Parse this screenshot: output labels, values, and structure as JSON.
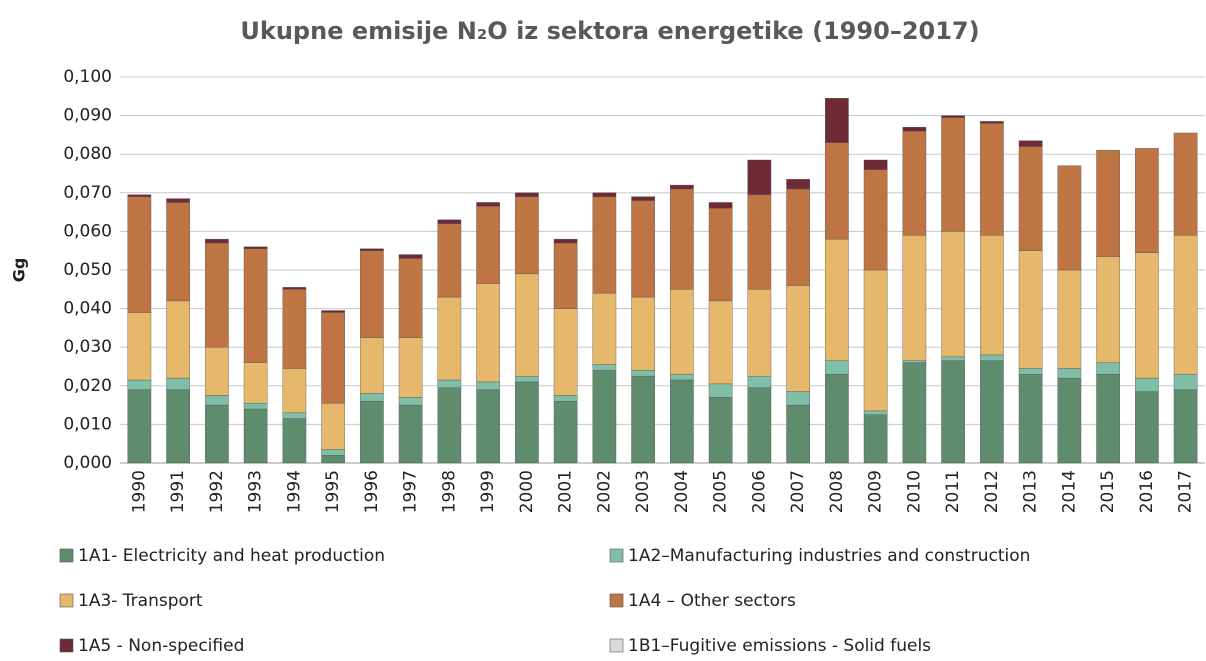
{
  "chart_data": {
    "type": "stacked_bar",
    "title": "Ukupne emisije N₂O iz sektora energetike (1990–2017)",
    "y_label": "Gg",
    "categories": [
      "1990",
      "1991",
      "1992",
      "1993",
      "1994",
      "1995",
      "1996",
      "1997",
      "1998",
      "1999",
      "2000",
      "2001",
      "2002",
      "2003",
      "2004",
      "2005",
      "2006",
      "2007",
      "2008",
      "2009",
      "2010",
      "2011",
      "2012",
      "2013",
      "2014",
      "2015",
      "2016",
      "2017"
    ],
    "series": [
      {
        "name": "1A1- Electricity and heat production",
        "color": "#5e8c6c",
        "values": [
          0.019,
          0.019,
          0.015,
          0.014,
          0.0115,
          0.002,
          0.016,
          0.015,
          0.0195,
          0.019,
          0.021,
          0.016,
          0.024,
          0.0225,
          0.0215,
          0.017,
          0.0195,
          0.015,
          0.023,
          0.0125,
          0.026,
          0.0265,
          0.0265,
          0.023,
          0.022,
          0.023,
          0.0185,
          0.019
        ]
      },
      {
        "name": "1A2–Manufacturing industries and construction",
        "color": "#7fbfa8",
        "values": [
          0.0025,
          0.003,
          0.0025,
          0.0015,
          0.0015,
          0.0015,
          0.002,
          0.002,
          0.002,
          0.002,
          0.0015,
          0.0015,
          0.0015,
          0.0015,
          0.0015,
          0.0035,
          0.003,
          0.0035,
          0.0035,
          0.001,
          0.0005,
          0.001,
          0.0015,
          0.0015,
          0.0025,
          0.003,
          0.0035,
          0.004
        ]
      },
      {
        "name": "1A3- Transport",
        "color": "#e6b86c",
        "values": [
          0.0175,
          0.02,
          0.0125,
          0.0105,
          0.0115,
          0.012,
          0.0145,
          0.0155,
          0.0215,
          0.0255,
          0.0265,
          0.0225,
          0.0185,
          0.019,
          0.022,
          0.0215,
          0.0225,
          0.0275,
          0.0315,
          0.0365,
          0.0325,
          0.0325,
          0.031,
          0.0305,
          0.0255,
          0.0275,
          0.0325,
          0.036
        ]
      },
      {
        "name": "1A4 – Other sectors",
        "color": "#bf7444",
        "values": [
          0.03,
          0.0255,
          0.027,
          0.0295,
          0.0205,
          0.0235,
          0.0225,
          0.0205,
          0.019,
          0.02,
          0.02,
          0.017,
          0.025,
          0.025,
          0.026,
          0.024,
          0.0245,
          0.025,
          0.025,
          0.026,
          0.027,
          0.0295,
          0.029,
          0.027,
          0.027,
          0.0275,
          0.027,
          0.0265
        ]
      },
      {
        "name": "1A5 - Non-specified",
        "color": "#6e2a36",
        "values": [
          0.0005,
          0.001,
          0.001,
          0.0005,
          0.0005,
          0.0005,
          0.0005,
          0.001,
          0.001,
          0.001,
          0.001,
          0.001,
          0.001,
          0.001,
          0.001,
          0.0015,
          0.009,
          0.0025,
          0.0115,
          0.0025,
          0.001,
          0.0005,
          0.0005,
          0.0015,
          0,
          0,
          0,
          0
        ]
      },
      {
        "name": "1B1–Fugitive emissions - Solid fuels",
        "color": "#d9d9d9",
        "values": [
          0,
          0,
          0,
          0,
          0,
          0,
          0,
          0,
          0,
          0,
          0,
          0,
          0,
          0,
          0,
          0,
          0,
          0,
          0,
          0,
          0,
          0,
          0,
          0,
          0,
          0,
          0,
          0
        ]
      }
    ],
    "ylim": [
      0,
      0.1
    ],
    "yticks": [
      {
        "value": 0,
        "label": "0,000"
      },
      {
        "value": 0.01,
        "label": "0,010"
      },
      {
        "value": 0.02,
        "label": "0,020"
      },
      {
        "value": 0.03,
        "label": "0,030"
      },
      {
        "value": 0.04,
        "label": "0,040"
      },
      {
        "value": 0.05,
        "label": "0,050"
      },
      {
        "value": 0.06,
        "label": "0,060"
      },
      {
        "value": 0.07,
        "label": "0,070"
      },
      {
        "value": 0.08,
        "label": "0,080"
      },
      {
        "value": 0.09,
        "label": "0,090"
      },
      {
        "value": 0.1,
        "label": "0,100"
      }
    ],
    "grid": true,
    "legend": "bottom"
  }
}
